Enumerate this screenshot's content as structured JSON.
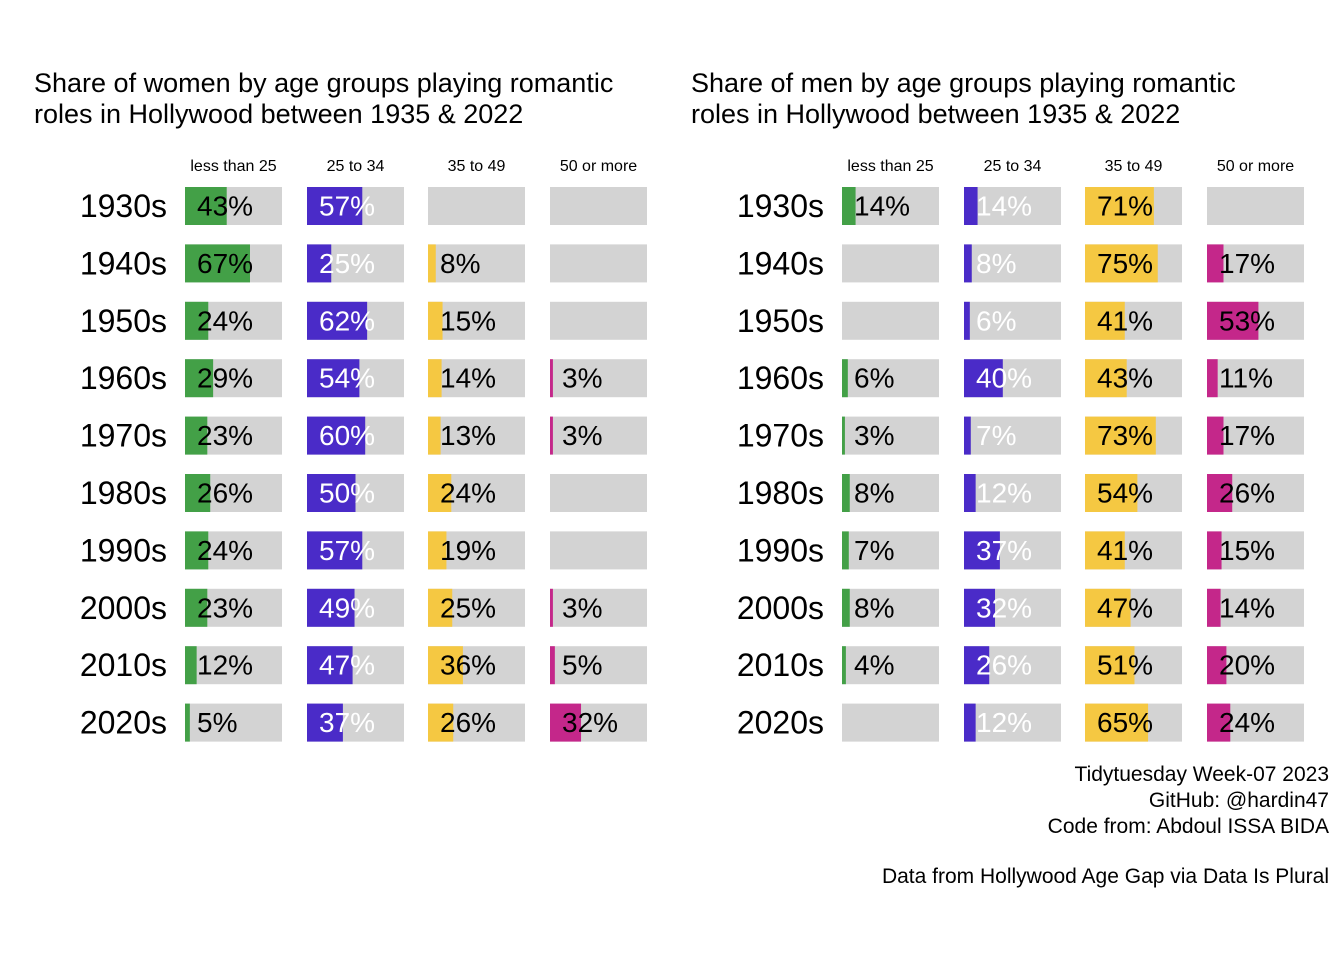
{
  "colors": {
    "track": "#d3d3d3",
    "less_than_25": "#43a047",
    "25_to_34": "#4a2bc8",
    "35_to_49": "#f5c842",
    "50_or_more": "#c4278a"
  },
  "chart_data": [
    {
      "type": "bar",
      "title": "Share of women by age groups playing romantic roles in Hollywood between 1935 & 2022",
      "title_lines": [
        "Share of women by age groups playing romantic",
        "roles in Hollywood between 1935 & 2022"
      ],
      "categories": [
        "1930s",
        "1940s",
        "1950s",
        "1960s",
        "1970s",
        "1980s",
        "1990s",
        "2000s",
        "2010s",
        "2020s"
      ],
      "xlim": [
        0,
        100
      ],
      "series": [
        {
          "name": "less than 25",
          "values": [
            43,
            67,
            24,
            29,
            23,
            26,
            24,
            23,
            12,
            5
          ]
        },
        {
          "name": "25 to 34",
          "values": [
            57,
            25,
            62,
            54,
            60,
            50,
            57,
            49,
            47,
            37
          ]
        },
        {
          "name": "35 to 49",
          "values": [
            null,
            8,
            15,
            14,
            13,
            24,
            19,
            25,
            36,
            26
          ]
        },
        {
          "name": "50 or more",
          "values": [
            null,
            null,
            null,
            3,
            3,
            null,
            null,
            3,
            5,
            32
          ]
        }
      ]
    },
    {
      "type": "bar",
      "title": "Share of men by age groups playing romantic roles in Hollywood between 1935 & 2022",
      "title_lines": [
        "Share of men by age groups playing romantic",
        "roles in Hollywood between 1935 & 2022"
      ],
      "categories": [
        "1930s",
        "1940s",
        "1950s",
        "1960s",
        "1970s",
        "1980s",
        "1990s",
        "2000s",
        "2010s",
        "2020s"
      ],
      "xlim": [
        0,
        100
      ],
      "series": [
        {
          "name": "less than 25",
          "values": [
            14,
            null,
            null,
            6,
            3,
            8,
            7,
            8,
            4,
            null
          ]
        },
        {
          "name": "25 to 34",
          "values": [
            14,
            8,
            6,
            40,
            7,
            12,
            37,
            32,
            26,
            12
          ]
        },
        {
          "name": "35 to 49",
          "values": [
            71,
            75,
            41,
            43,
            73,
            54,
            41,
            47,
            51,
            65
          ]
        },
        {
          "name": "50 or more",
          "values": [
            null,
            17,
            53,
            11,
            17,
            26,
            15,
            14,
            20,
            24
          ]
        }
      ]
    }
  ],
  "caption": {
    "line1": "Tidytuesday Week-07 2023",
    "line2": "GitHub: @hardin47",
    "line3": "Code from: Abdoul ISSA BIDA",
    "line4": "Data from Hollywood Age Gap via Data Is Plural"
  }
}
